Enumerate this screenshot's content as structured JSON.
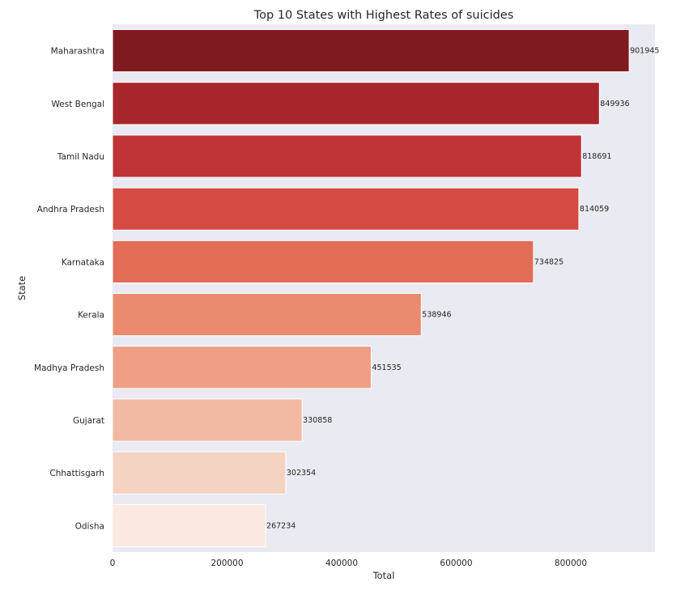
{
  "chart_data": {
    "type": "bar",
    "orientation": "horizontal",
    "title": "Top 10 States with Highest Rates of suicides",
    "xlabel": "Total",
    "ylabel": "State",
    "categories": [
      "Maharashtra",
      "West Bengal",
      "Tamil Nadu",
      "Andhra Pradesh",
      "Karnataka",
      "Kerala",
      "Madhya Pradesh",
      "Gujarat",
      "Chhattisgarh",
      "Odisha"
    ],
    "values": [
      901945,
      849936,
      818691,
      814059,
      734825,
      538946,
      451535,
      330858,
      302354,
      267234
    ],
    "data_labels": [
      "901945",
      "849936",
      "818691",
      "814059",
      "734825",
      "538946",
      "451535",
      "330858",
      "302354",
      "267234"
    ],
    "xlim": [
      0,
      947042
    ],
    "xticks": [
      0,
      200000,
      400000,
      600000,
      800000
    ],
    "xtick_labels": [
      "0",
      "200000",
      "400000",
      "600000",
      "800000"
    ],
    "grid": false,
    "background": "#eaeaf2",
    "colors": [
      "#7f1a20",
      "#a6262c",
      "#bf3335",
      "#d54b41",
      "#e36c56",
      "#ea8a6e",
      "#ee9f86",
      "#f2b9a2",
      "#f5d3c3",
      "#fbe8e0"
    ]
  }
}
